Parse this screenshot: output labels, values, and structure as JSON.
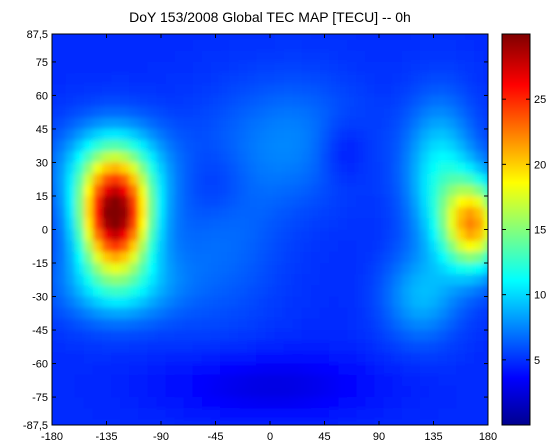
{
  "chart_data": {
    "type": "heatmap",
    "title": "DoY 153/2008 Global TEC MAP [TECU] -- 0h",
    "xlabel": "",
    "ylabel": "",
    "x_ticks": [
      "-180",
      "-135",
      "-90",
      "-45",
      "0",
      "45",
      "90",
      "135",
      "180"
    ],
    "y_ticks": [
      "87,5",
      "75",
      "60",
      "45",
      "30",
      "15",
      "0",
      "-15",
      "-30",
      "-45",
      "-60",
      "-75",
      "-87,5"
    ],
    "xlim": [
      -180,
      180
    ],
    "ylim": [
      -87.5,
      87.5
    ],
    "colorbar": {
      "ticks": [
        "5",
        "10",
        "15",
        "20",
        "25"
      ],
      "range": [
        0,
        30
      ],
      "colormap": "jet"
    },
    "grid": false,
    "values_units": "TECU",
    "blobs_description": [
      {
        "lon": -128,
        "lat": 5,
        "peak": 29
      },
      {
        "lon": 165,
        "lat": 3,
        "peak": 20
      }
    ]
  }
}
